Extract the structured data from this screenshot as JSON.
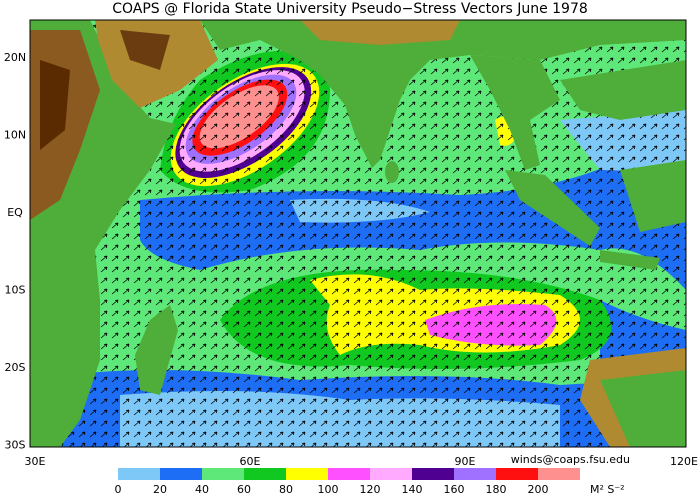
{
  "title": "COAPS @ Florida State University Pseudo−Stress Vectors  June 1978",
  "lat_labels": [
    "20N",
    "10N",
    "EQ",
    "10S",
    "20S",
    "30S"
  ],
  "lon_labels": [
    "30E",
    "60E",
    "90E",
    "120E"
  ],
  "credit": "winds@coaps.fsu.edu",
  "colorbar": {
    "levels": [
      0,
      20,
      40,
      60,
      80,
      100,
      120,
      140,
      160,
      180,
      200
    ],
    "colors": [
      "#7ec8f8",
      "#1e6ef5",
      "#5fe87a",
      "#10c820",
      "#ffff00",
      "#ff50ff",
      "#ffaaff",
      "#500090",
      "#a070ff",
      "#ff1010",
      "#ff9090"
    ],
    "unit": "M² S⁻²"
  }
}
